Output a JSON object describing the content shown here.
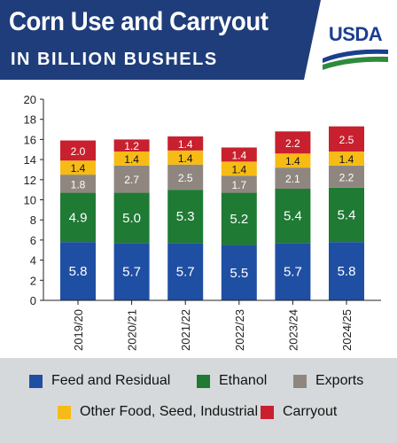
{
  "header": {
    "title": "Corn Use and Carryout",
    "subtitle": "IN BILLION BUSHELS",
    "logo_text": "USDA",
    "bg_color": "#1f3d7a"
  },
  "chart_data": {
    "type": "bar",
    "stacked": true,
    "categories": [
      "2019/20",
      "2020/21",
      "2021/22",
      "2022/23",
      "2023/24",
      "2024/25"
    ],
    "series": [
      {
        "name": "Feed and Residual",
        "color": "#1f4fa3",
        "values": [
          5.8,
          5.7,
          5.7,
          5.5,
          5.7,
          5.8
        ]
      },
      {
        "name": "Ethanol",
        "color": "#1f7a34",
        "values": [
          4.9,
          5.0,
          5.3,
          5.2,
          5.4,
          5.4
        ]
      },
      {
        "name": "Exports",
        "color": "#8f877f",
        "values": [
          1.8,
          2.7,
          2.5,
          1.7,
          2.1,
          2.2
        ]
      },
      {
        "name": "Other Food, Seed, Industrial",
        "color": "#f7bb16",
        "values": [
          1.4,
          1.4,
          1.4,
          1.4,
          1.4,
          1.4
        ]
      },
      {
        "name": "Carryout",
        "color": "#c8202e",
        "values": [
          2.0,
          1.2,
          1.4,
          1.4,
          2.2,
          2.5
        ]
      }
    ],
    "yticks": [
      0,
      2,
      4,
      6,
      8,
      10,
      12,
      14,
      16,
      18,
      20
    ],
    "ylim": [
      0,
      20
    ],
    "grid": false,
    "legend_position": "bottom"
  },
  "legend": {
    "items": [
      {
        "label": "Feed and Residual",
        "color": "#1f4fa3"
      },
      {
        "label": "Ethanol",
        "color": "#1f7a34"
      },
      {
        "label": "Exports",
        "color": "#8f877f"
      },
      {
        "label": "Other Food, Seed, Industrial",
        "color": "#f7bb16"
      },
      {
        "label": "Carryout",
        "color": "#c8202e"
      }
    ]
  }
}
